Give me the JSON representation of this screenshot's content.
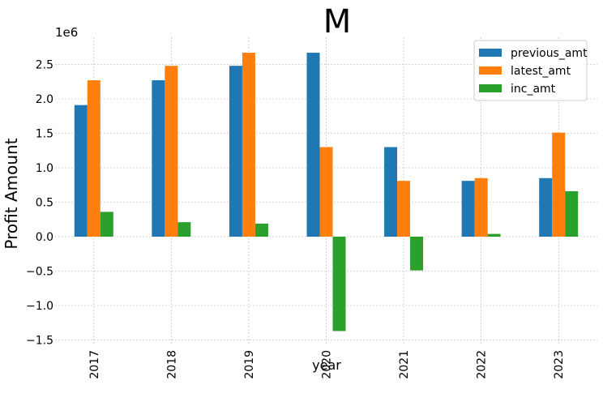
{
  "chart_data": {
    "type": "bar",
    "title": "M",
    "xlabel": "year",
    "ylabel": "Profit Amount",
    "y_offset_label": "1e6",
    "y_scale": 1000000,
    "categories": [
      "2017",
      "2018",
      "2019",
      "2020",
      "2021",
      "2022",
      "2023"
    ],
    "series": [
      {
        "name": "previous_amt",
        "color": "#1f77b4",
        "values": [
          1910000,
          2270000,
          2480000,
          2670000,
          1300000,
          810000,
          850000
        ]
      },
      {
        "name": "latest_amt",
        "color": "#ff7f0e",
        "values": [
          2270000,
          2480000,
          2670000,
          1300000,
          810000,
          850000,
          1510000
        ]
      },
      {
        "name": "inc_amt",
        "color": "#2ca02c",
        "values": [
          360000,
          210000,
          190000,
          -1370000,
          -490000,
          40000,
          660000
        ]
      }
    ],
    "yticks": [
      -1.5,
      -1.0,
      -0.5,
      0.0,
      0.5,
      1.0,
      1.5,
      2.0,
      2.5
    ],
    "ytick_labels": [
      "−1.5",
      "−1.0",
      "−0.5",
      "0.0",
      "0.5",
      "1.0",
      "1.5",
      "2.0",
      "2.5"
    ],
    "ylim": [
      -1500000,
      2850000
    ],
    "grid": true,
    "legend_position": "top-right"
  }
}
